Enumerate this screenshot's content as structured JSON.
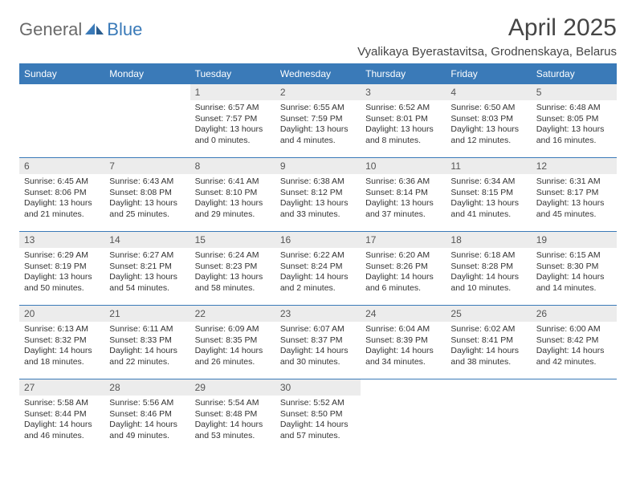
{
  "brand": {
    "part1": "General",
    "part2": "Blue",
    "accent": "#3a7ab8",
    "text_color": "#6a6a6a"
  },
  "title": "April 2025",
  "location": "Vyalikaya Byerastavitsa, Grodnenskaya, Belarus",
  "calendar": {
    "header_bg": "#3a7ab8",
    "header_fg": "#ffffff",
    "daynum_bg": "#ececec",
    "border_color": "#3a7ab8",
    "text_color": "#333333",
    "font_size_header": 12,
    "font_size_daynum": 12,
    "font_size_body": 10.5,
    "columns": [
      "Sunday",
      "Monday",
      "Tuesday",
      "Wednesday",
      "Thursday",
      "Friday",
      "Saturday"
    ],
    "weeks": [
      [
        null,
        null,
        {
          "n": "1",
          "sunrise": "6:57 AM",
          "sunset": "7:57 PM",
          "daylight": "13 hours and 0 minutes."
        },
        {
          "n": "2",
          "sunrise": "6:55 AM",
          "sunset": "7:59 PM",
          "daylight": "13 hours and 4 minutes."
        },
        {
          "n": "3",
          "sunrise": "6:52 AM",
          "sunset": "8:01 PM",
          "daylight": "13 hours and 8 minutes."
        },
        {
          "n": "4",
          "sunrise": "6:50 AM",
          "sunset": "8:03 PM",
          "daylight": "13 hours and 12 minutes."
        },
        {
          "n": "5",
          "sunrise": "6:48 AM",
          "sunset": "8:05 PM",
          "daylight": "13 hours and 16 minutes."
        }
      ],
      [
        {
          "n": "6",
          "sunrise": "6:45 AM",
          "sunset": "8:06 PM",
          "daylight": "13 hours and 21 minutes."
        },
        {
          "n": "7",
          "sunrise": "6:43 AM",
          "sunset": "8:08 PM",
          "daylight": "13 hours and 25 minutes."
        },
        {
          "n": "8",
          "sunrise": "6:41 AM",
          "sunset": "8:10 PM",
          "daylight": "13 hours and 29 minutes."
        },
        {
          "n": "9",
          "sunrise": "6:38 AM",
          "sunset": "8:12 PM",
          "daylight": "13 hours and 33 minutes."
        },
        {
          "n": "10",
          "sunrise": "6:36 AM",
          "sunset": "8:14 PM",
          "daylight": "13 hours and 37 minutes."
        },
        {
          "n": "11",
          "sunrise": "6:34 AM",
          "sunset": "8:15 PM",
          "daylight": "13 hours and 41 minutes."
        },
        {
          "n": "12",
          "sunrise": "6:31 AM",
          "sunset": "8:17 PM",
          "daylight": "13 hours and 45 minutes."
        }
      ],
      [
        {
          "n": "13",
          "sunrise": "6:29 AM",
          "sunset": "8:19 PM",
          "daylight": "13 hours and 50 minutes."
        },
        {
          "n": "14",
          "sunrise": "6:27 AM",
          "sunset": "8:21 PM",
          "daylight": "13 hours and 54 minutes."
        },
        {
          "n": "15",
          "sunrise": "6:24 AM",
          "sunset": "8:23 PM",
          "daylight": "13 hours and 58 minutes."
        },
        {
          "n": "16",
          "sunrise": "6:22 AM",
          "sunset": "8:24 PM",
          "daylight": "14 hours and 2 minutes."
        },
        {
          "n": "17",
          "sunrise": "6:20 AM",
          "sunset": "8:26 PM",
          "daylight": "14 hours and 6 minutes."
        },
        {
          "n": "18",
          "sunrise": "6:18 AM",
          "sunset": "8:28 PM",
          "daylight": "14 hours and 10 minutes."
        },
        {
          "n": "19",
          "sunrise": "6:15 AM",
          "sunset": "8:30 PM",
          "daylight": "14 hours and 14 minutes."
        }
      ],
      [
        {
          "n": "20",
          "sunrise": "6:13 AM",
          "sunset": "8:32 PM",
          "daylight": "14 hours and 18 minutes."
        },
        {
          "n": "21",
          "sunrise": "6:11 AM",
          "sunset": "8:33 PM",
          "daylight": "14 hours and 22 minutes."
        },
        {
          "n": "22",
          "sunrise": "6:09 AM",
          "sunset": "8:35 PM",
          "daylight": "14 hours and 26 minutes."
        },
        {
          "n": "23",
          "sunrise": "6:07 AM",
          "sunset": "8:37 PM",
          "daylight": "14 hours and 30 minutes."
        },
        {
          "n": "24",
          "sunrise": "6:04 AM",
          "sunset": "8:39 PM",
          "daylight": "14 hours and 34 minutes."
        },
        {
          "n": "25",
          "sunrise": "6:02 AM",
          "sunset": "8:41 PM",
          "daylight": "14 hours and 38 minutes."
        },
        {
          "n": "26",
          "sunrise": "6:00 AM",
          "sunset": "8:42 PM",
          "daylight": "14 hours and 42 minutes."
        }
      ],
      [
        {
          "n": "27",
          "sunrise": "5:58 AM",
          "sunset": "8:44 PM",
          "daylight": "14 hours and 46 minutes."
        },
        {
          "n": "28",
          "sunrise": "5:56 AM",
          "sunset": "8:46 PM",
          "daylight": "14 hours and 49 minutes."
        },
        {
          "n": "29",
          "sunrise": "5:54 AM",
          "sunset": "8:48 PM",
          "daylight": "14 hours and 53 minutes."
        },
        {
          "n": "30",
          "sunrise": "5:52 AM",
          "sunset": "8:50 PM",
          "daylight": "14 hours and 57 minutes."
        },
        null,
        null,
        null
      ]
    ],
    "labels": {
      "sunrise": "Sunrise:",
      "sunset": "Sunset:",
      "daylight": "Daylight:"
    }
  }
}
